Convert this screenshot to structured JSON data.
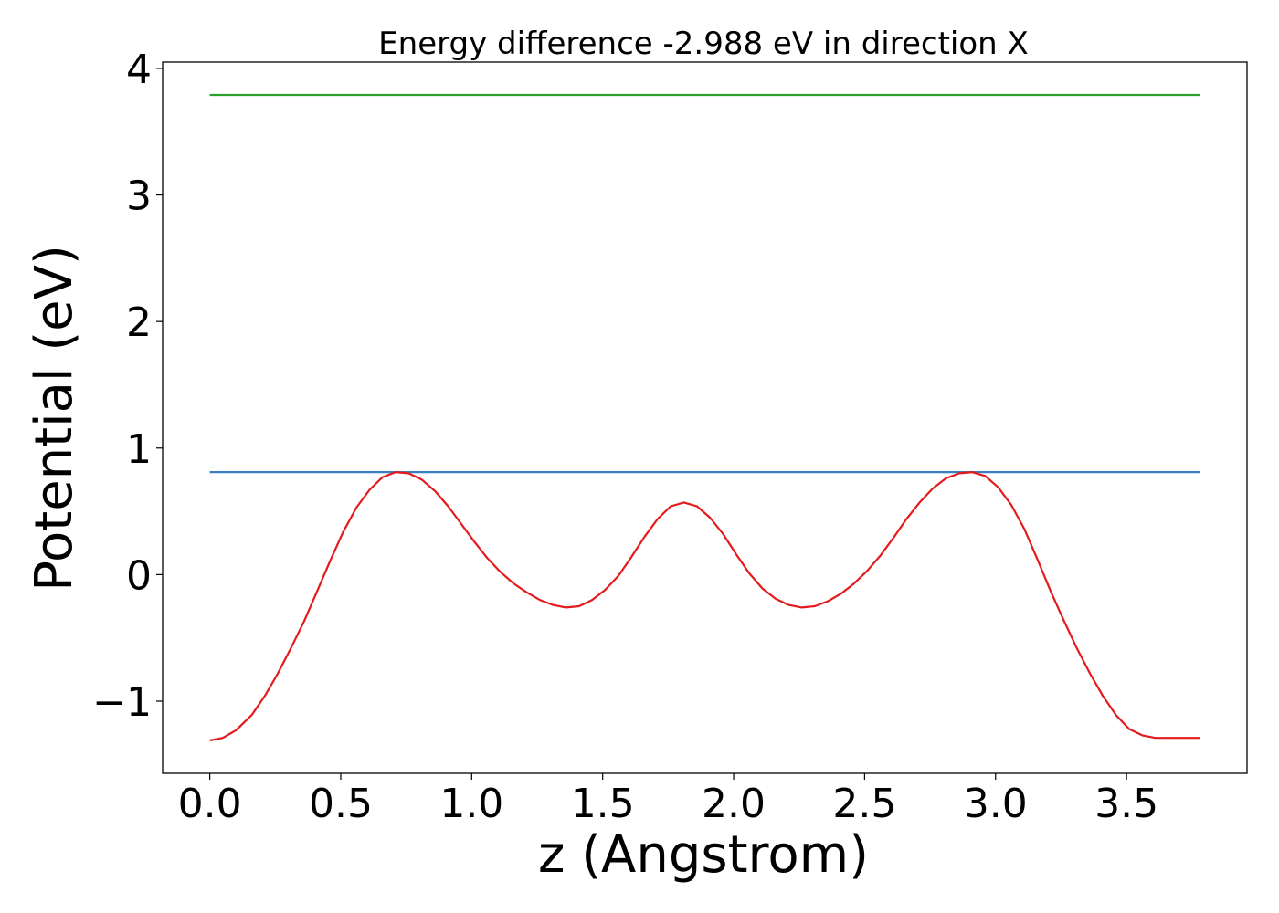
{
  "chart_data": {
    "type": "line",
    "title": "Energy difference -2.988 eV in direction X",
    "xlabel": "z (Angstrom)",
    "ylabel": "Potential (eV)",
    "xlim": [
      -0.18,
      3.96
    ],
    "ylim": [
      -1.57,
      4.05
    ],
    "xticks": [
      0.0,
      0.5,
      1.0,
      1.5,
      2.0,
      2.5,
      3.0,
      3.5
    ],
    "xtick_labels": [
      "0.0",
      "0.5",
      "1.0",
      "1.5",
      "2.0",
      "2.5",
      "3.0",
      "3.5"
    ],
    "yticks": [
      -1,
      0,
      1,
      2,
      3,
      4
    ],
    "ytick_labels": [
      "−1",
      "0",
      "1",
      "2",
      "3",
      "4"
    ],
    "grid": false,
    "series": [
      {
        "color": "#2ca02c",
        "x": [
          0.0,
          3.78
        ],
        "y": [
          3.79,
          3.79
        ]
      },
      {
        "color": "#3a7fc2",
        "x": [
          0.0,
          3.78
        ],
        "y": [
          0.81,
          0.81
        ]
      },
      {
        "color": "#e41a1c",
        "x": [
          0.0,
          0.05,
          0.1,
          0.16,
          0.21,
          0.26,
          0.31,
          0.36,
          0.41,
          0.46,
          0.51,
          0.56,
          0.61,
          0.66,
          0.71,
          0.76,
          0.81,
          0.86,
          0.91,
          0.96,
          1.01,
          1.06,
          1.11,
          1.16,
          1.21,
          1.26,
          1.31,
          1.36,
          1.41,
          1.46,
          1.51,
          1.56,
          1.61,
          1.66,
          1.71,
          1.76,
          1.81,
          1.86,
          1.91,
          1.96,
          2.01,
          2.06,
          2.11,
          2.16,
          2.21,
          2.26,
          2.31,
          2.36,
          2.41,
          2.46,
          2.51,
          2.56,
          2.61,
          2.66,
          2.71,
          2.76,
          2.81,
          2.86,
          2.91,
          2.96,
          3.01,
          3.06,
          3.11,
          3.16,
          3.21,
          3.26,
          3.31,
          3.36,
          3.41,
          3.46,
          3.51,
          3.56,
          3.61,
          3.66,
          3.71,
          3.76,
          3.78
        ],
        "y": [
          -1.31,
          -1.29,
          -1.23,
          -1.11,
          -0.96,
          -0.78,
          -0.58,
          -0.37,
          -0.13,
          0.11,
          0.34,
          0.53,
          0.67,
          0.77,
          0.81,
          0.8,
          0.75,
          0.66,
          0.54,
          0.4,
          0.26,
          0.13,
          0.02,
          -0.07,
          -0.14,
          -0.2,
          -0.24,
          -0.26,
          -0.25,
          -0.2,
          -0.12,
          -0.01,
          0.14,
          0.3,
          0.44,
          0.54,
          0.57,
          0.54,
          0.45,
          0.32,
          0.16,
          0.01,
          -0.11,
          -0.19,
          -0.24,
          -0.26,
          -0.25,
          -0.21,
          -0.15,
          -0.07,
          0.03,
          0.15,
          0.29,
          0.44,
          0.57,
          0.68,
          0.76,
          0.8,
          0.81,
          0.78,
          0.69,
          0.55,
          0.36,
          0.12,
          -0.13,
          -0.36,
          -0.58,
          -0.78,
          -0.96,
          -1.11,
          -1.22,
          -1.27,
          -1.29,
          -1.29,
          -1.29,
          -1.29,
          -1.29
        ]
      }
    ]
  }
}
